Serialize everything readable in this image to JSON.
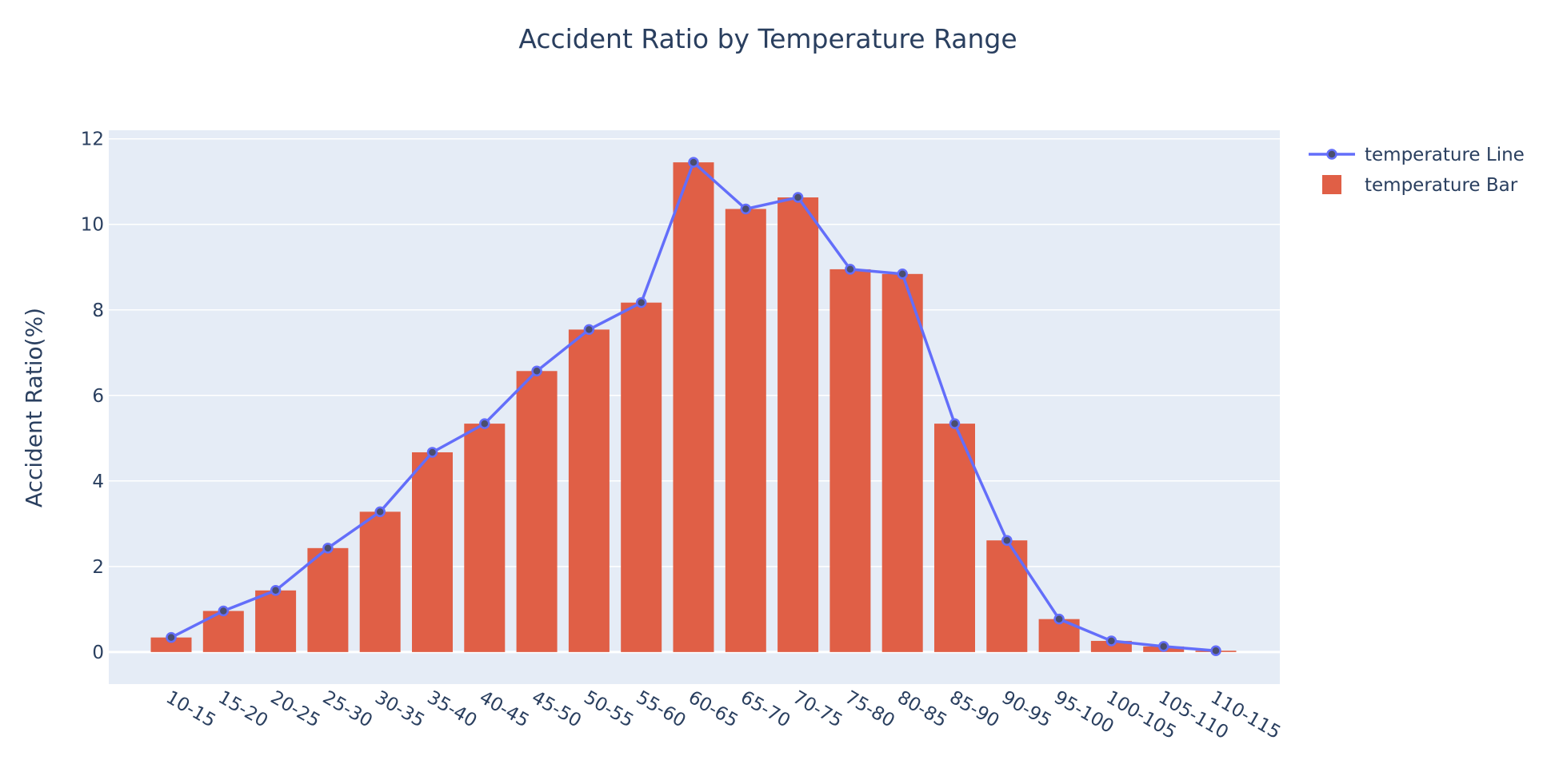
{
  "chart_data": {
    "type": "bar",
    "title": "Accident Ratio by Temperature Range",
    "xlabel": "",
    "ylabel": "Accident Ratio(%)",
    "ylim": [
      -0.75,
      12.2
    ],
    "yticks": [
      0,
      2,
      4,
      6,
      8,
      10,
      12
    ],
    "grid": true,
    "legend_position": "top-right",
    "categories": [
      "10-15",
      "15-20",
      "20-25",
      "25-30",
      "30-35",
      "35-40",
      "40-45",
      "45-50",
      "50-55",
      "55-60",
      "60-65",
      "65-70",
      "70-75",
      "75-80",
      "80-85",
      "85-90",
      "90-95",
      "95-100",
      "100-105",
      "105-110",
      "110-115"
    ],
    "series": [
      {
        "name": "temperature Line",
        "type": "line",
        "color": "#636efa",
        "marker_color": "#4a4e6e",
        "values": [
          0.34,
          0.96,
          1.44,
          2.43,
          3.28,
          4.67,
          5.34,
          6.57,
          7.54,
          8.17,
          11.45,
          10.36,
          10.63,
          8.95,
          8.84,
          5.34,
          2.61,
          0.77,
          0.26,
          0.13,
          0.03
        ]
      },
      {
        "name": "temperature Bar",
        "type": "bar",
        "color": "#e05f46",
        "values": [
          0.34,
          0.96,
          1.44,
          2.43,
          3.28,
          4.67,
          5.34,
          6.57,
          7.54,
          8.17,
          11.45,
          10.36,
          10.63,
          8.95,
          8.84,
          5.34,
          2.61,
          0.77,
          0.26,
          0.13,
          0.03
        ]
      }
    ],
    "colors": {
      "plot_background": "#e5ecf6",
      "grid": "#ffffff",
      "text": "#2a3f5f"
    }
  }
}
